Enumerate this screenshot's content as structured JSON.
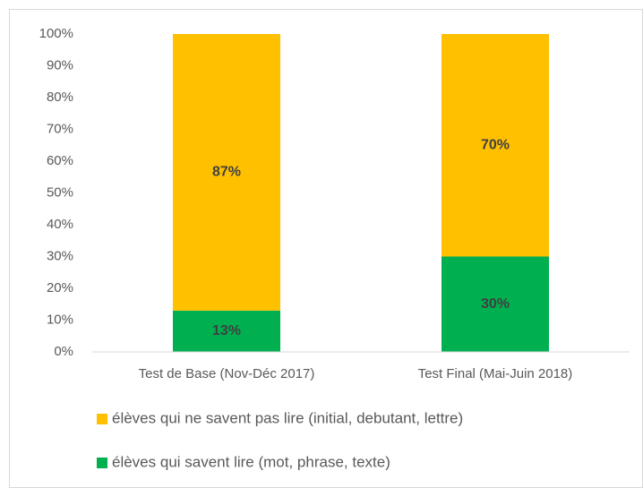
{
  "chart_data": {
    "type": "stacked_bar",
    "categories": [
      "Test de Base (Nov-Déc 2017)",
      "Test Final (Mai-Juin 2018)"
    ],
    "series": [
      {
        "name": "élèves qui savent lire (mot, phrase, texte)",
        "color": "#00b050",
        "values": [
          13,
          30
        ],
        "value_labels": [
          "13%",
          "30%"
        ]
      },
      {
        "name": "élèves qui ne savent pas lire (initial, debutant, lettre)",
        "color": "#ffc000",
        "values": [
          87,
          70
        ],
        "value_labels": [
          "87%",
          "70%"
        ]
      }
    ],
    "ylim": [
      0,
      100
    ],
    "yticks": [
      {
        "value": 0,
        "label": "0%"
      },
      {
        "value": 10,
        "label": "10%"
      },
      {
        "value": 20,
        "label": "20%"
      },
      {
        "value": 30,
        "label": "30%"
      },
      {
        "value": 40,
        "label": "40%"
      },
      {
        "value": 50,
        "label": "50%"
      },
      {
        "value": 60,
        "label": "60%"
      },
      {
        "value": 70,
        "label": "70%"
      },
      {
        "value": 80,
        "label": "80%"
      },
      {
        "value": 90,
        "label": "90%"
      },
      {
        "value": 100,
        "label": "100%"
      }
    ],
    "grid": false
  }
}
